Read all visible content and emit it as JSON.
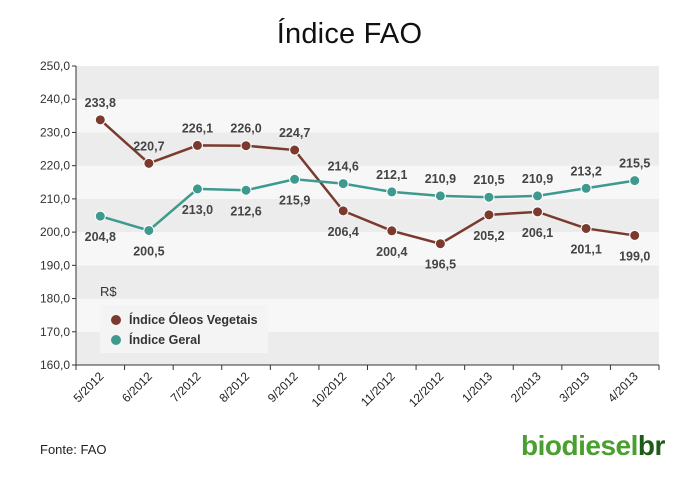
{
  "title": "Índice FAO",
  "source": "Fonte: FAO",
  "logo": {
    "part1": "biodiesel",
    "part2": "br"
  },
  "chart_data": {
    "type": "line",
    "title": "Índice FAO",
    "ylabel": "R$",
    "ylim": [
      160,
      250
    ],
    "yticks": [
      "160,0",
      "170,0",
      "180,0",
      "190,0",
      "200,0",
      "210,0",
      "220,0",
      "230,0",
      "240,0",
      "250,0"
    ],
    "categories": [
      "5/2012",
      "6/2012",
      "7/2012",
      "8/2012",
      "9/2012",
      "10/2012",
      "11/2012",
      "12/2012",
      "1/2013",
      "2/2013",
      "3/2013",
      "4/2013"
    ],
    "legend_position": "bottom-left",
    "series": [
      {
        "name": "Índice Óleos Vegetais",
        "color": "#7a3b2e",
        "values": [
          233.8,
          220.7,
          226.1,
          226.0,
          224.7,
          206.4,
          200.4,
          196.5,
          205.2,
          206.1,
          201.1,
          199.0
        ],
        "labels": [
          "233,8",
          "220,7",
          "226,1",
          "226,0",
          "224,7",
          "206,4",
          "200,4",
          "196,5",
          "205,2",
          "206,1",
          "201,1",
          "199,0"
        ]
      },
      {
        "name": "Índice Geral",
        "color": "#3e9a8f",
        "values": [
          204.8,
          200.5,
          213.0,
          212.6,
          215.9,
          214.6,
          212.1,
          210.9,
          210.5,
          210.9,
          213.2,
          215.5
        ],
        "labels": [
          "204,8",
          "200,5",
          "213,0",
          "212,6",
          "215,9",
          "214,6",
          "212,1",
          "210,9",
          "210,5",
          "210,9",
          "213,2",
          "215,5"
        ]
      }
    ]
  }
}
